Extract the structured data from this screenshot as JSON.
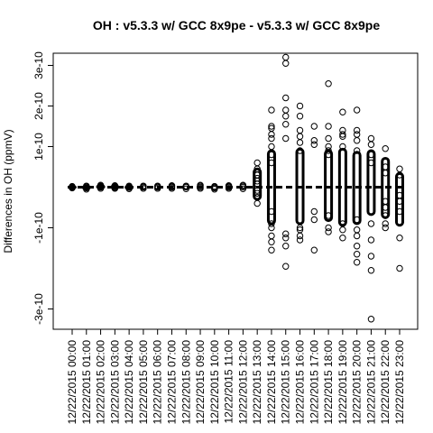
{
  "chart_data": {
    "type": "scatter",
    "title": "OH : v5.3.3 w/ GCC 8x9pe - v5.3.3 w/ GCC 8x9pe",
    "xlabel": "",
    "ylabel": "Differences in OH (ppmV)",
    "ylim": [
      -3.5e-10,
      3.3e-10
    ],
    "y_ticks": [
      {
        "value": -3e-10,
        "label": "-3e-10"
      },
      {
        "value": -1e-10,
        "label": "-1e-10"
      },
      {
        "value": 1e-10,
        "label": "1e-10"
      },
      {
        "value": 2e-10,
        "label": "2e-10"
      },
      {
        "value": 3e-10,
        "label": "3e-10"
      }
    ],
    "categories": [
      "12/22/2015 00:00",
      "12/22/2015 01:00",
      "12/22/2015 02:00",
      "12/22/2015 03:00",
      "12/22/2015 04:00",
      "12/22/2015 05:00",
      "12/22/2015 06:00",
      "12/22/2015 07:00",
      "12/22/2015 08:00",
      "12/22/2015 09:00",
      "12/22/2015 10:00",
      "12/22/2015 11:00",
      "12/22/2015 12:00",
      "12/22/2015 13:00",
      "12/22/2015 14:00",
      "12/22/2015 15:00",
      "12/22/2015 16:00",
      "12/22/2015 17:00",
      "12/22/2015 18:00",
      "12/22/2015 19:00",
      "12/22/2015 20:00",
      "12/22/2015 21:00",
      "12/22/2015 22:00",
      "12/22/2015 23:00"
    ],
    "series": [
      {
        "reference_line": 0,
        "points_per_category": [
          [
            -1e-12,
            0,
            1e-12,
            -2e-12,
            2e-12
          ],
          [
            -5e-12,
            -2e-12,
            0,
            2e-12,
            3e-12
          ],
          [
            -3e-12,
            0,
            3e-12,
            5e-12,
            1e-12
          ],
          [
            -3e-12,
            0,
            2e-12,
            4e-12,
            -1e-12
          ],
          [
            -4e-12,
            -1e-12,
            0,
            3e-12,
            1e-12
          ],
          [
            -3e-12,
            0,
            2e-12,
            3e-12
          ],
          [
            -3e-12,
            0,
            2e-12,
            3e-12
          ],
          [
            -3e-12,
            0,
            2e-12,
            4e-12
          ],
          [
            -4e-12,
            0,
            2e-12,
            3e-12
          ],
          [
            -3e-12,
            0,
            3e-12,
            5e-12
          ],
          [
            -5e-12,
            -2e-12,
            0,
            2e-12
          ],
          [
            -3e-12,
            0,
            2e-12,
            4e-12
          ],
          [
            -4e-12,
            0,
            3e-12,
            5e-12
          ],
          [
            6e-11,
            4.5e-11,
            3e-11,
            2.2e-11,
            1.5e-11,
            8e-12,
            -8e-12,
            -1.5e-11,
            -2.5e-11,
            -4e-11
          ],
          [
            1.9e-10,
            1.5e-10,
            1.45e-10,
            1.3e-10,
            1.2e-10,
            1e-10,
            8e-11,
            6e-11,
            -6e-11,
            -9e-11,
            -1e-10,
            -1.2e-10,
            -1.35e-10,
            -1.55e-10
          ],
          [
            3.2e-10,
            3.05e-10,
            2.2e-10,
            1.9e-10,
            1.75e-10,
            1.55e-10,
            1.2e-10,
            -1.15e-10,
            -1.25e-10,
            -1.45e-10,
            -1.95e-10
          ],
          [
            2e-10,
            1.75e-10,
            1.4e-10,
            1.25e-10,
            1.1e-10,
            9e-11,
            -1e-10,
            -1.05e-10,
            -1.2e-10,
            -1.3e-10
          ],
          [
            1.5e-10,
            1.15e-10,
            1.05e-10,
            -6e-11,
            -8e-11,
            -1.55e-10
          ],
          [
            2.55e-10,
            1.5e-10,
            1.2e-10,
            1e-10,
            9e-11,
            8e-11,
            -7e-11,
            -1e-10,
            -1.1e-10
          ],
          [
            1.85e-10,
            1.4e-10,
            1.3e-10,
            1.25e-10,
            1e-10,
            -9e-11,
            -1.05e-10,
            -1.25e-10
          ],
          [
            1.9e-10,
            1.4e-10,
            1.3e-10,
            1.15e-10,
            9e-11,
            -8e-11,
            -1.05e-10,
            -1.2e-10,
            -1.45e-10,
            -1.65e-10,
            -1.85e-10
          ],
          [
            1.2e-10,
            1.05e-10,
            8e-11,
            6e-11,
            -9e-11,
            -1.3e-10,
            -1.7e-10,
            -2.05e-10,
            -3.25e-10
          ],
          [
            9.5e-11,
            5e-11,
            3.5e-11,
            -3.5e-11,
            -5e-11,
            -7e-11,
            -9e-11,
            -1e-10
          ],
          [
            4.5e-11,
            3e-11,
            -2e-11,
            -3.5e-11,
            -6e-11,
            -1.25e-10,
            -2e-10
          ]
        ]
      }
    ],
    "grid": false,
    "legend": "none"
  }
}
